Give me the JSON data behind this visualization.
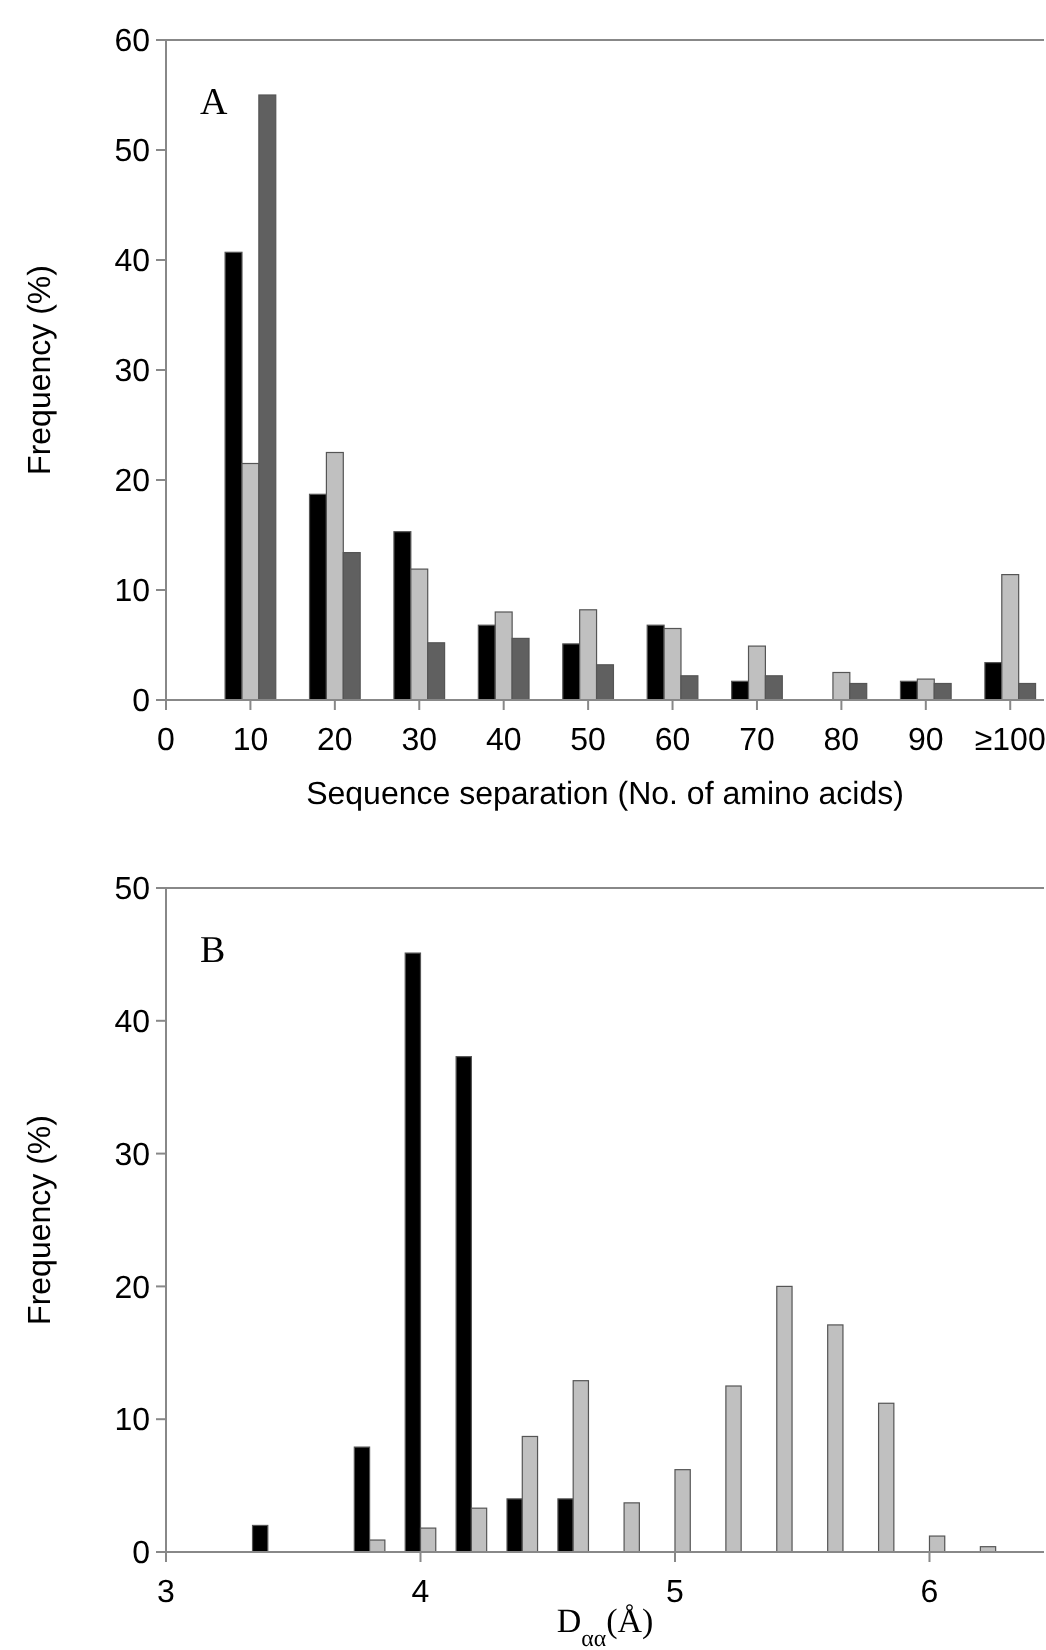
{
  "chart_data": [
    {
      "type": "bar",
      "annotations": [
        "A"
      ],
      "xlabel": "Sequence separation (No. of amino acids)",
      "ylabel": "Frequency (%)",
      "x": [
        10,
        20,
        30,
        40,
        50,
        60,
        70,
        80,
        90,
        100
      ],
      "series": [
        {
          "color": "#000000",
          "values": [
            40.7,
            18.7,
            15.3,
            6.8,
            5.1,
            6.8,
            1.7,
            0,
            1.7,
            3.4
          ]
        },
        {
          "color": "#c0c0c0",
          "values": [
            21.5,
            22.5,
            11.9,
            8.0,
            8.2,
            6.5,
            4.9,
            2.5,
            1.9,
            11.4
          ]
        },
        {
          "color": "#606060",
          "values": [
            55,
            13.4,
            5.2,
            5.6,
            3.2,
            2.2,
            2.2,
            1.5,
            1.5,
            1.5
          ]
        }
      ],
      "xlim": [
        0,
        104
      ],
      "xticks": [
        0,
        10,
        20,
        30,
        40,
        50,
        60,
        70,
        80,
        90,
        {
          "value": 100,
          "label": "≥100"
        }
      ],
      "ylim": [
        0,
        60
      ],
      "yticks": [
        0,
        10,
        20,
        30,
        40,
        50,
        60
      ]
    },
    {
      "type": "bar",
      "annotations": [
        "B"
      ],
      "xlabel": "D$_{αα}$(Å)",
      "ylabel": "Frequency (%)",
      "x": [
        3.4,
        3.6,
        3.8,
        4.0,
        4.2,
        4.4,
        4.6,
        4.8,
        5.0,
        5.2,
        5.4,
        5.6,
        5.8,
        6.0,
        6.2
      ],
      "series": [
        {
          "color": "#000000",
          "values": [
            2.0,
            0,
            7.9,
            45.1,
            37.3,
            4.0,
            4.0,
            0,
            0,
            0,
            0,
            0,
            0,
            0,
            0
          ]
        },
        {
          "color": "#c0c0c0",
          "values": [
            0,
            0,
            0.9,
            1.8,
            3.3,
            8.7,
            12.9,
            3.7,
            6.2,
            12.5,
            20.0,
            17.1,
            11.2,
            1.2,
            0.4
          ]
        }
      ],
      "xlim": [
        3,
        6.45
      ],
      "xticks": [
        3,
        4,
        5,
        6
      ],
      "ylim": [
        0,
        50
      ],
      "yticks": [
        0,
        10,
        20,
        30,
        40,
        50
      ]
    }
  ]
}
